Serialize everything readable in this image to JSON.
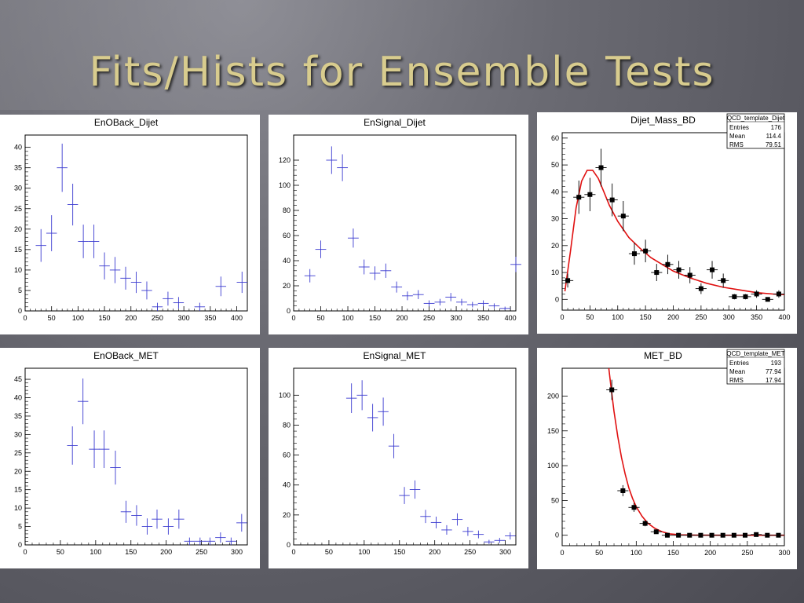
{
  "slide_title": "Fits/Hists for Ensemble Tests",
  "colors": {
    "hist": "#3b3bd0",
    "fit": "#e01010",
    "marker": "#000000",
    "title": "#d8cc8e"
  },
  "chart_data": [
    {
      "type": "scatter",
      "style": "errorbar",
      "title": "EnOBack_Dijet",
      "xlim": [
        0,
        420
      ],
      "ylim": [
        0,
        43
      ],
      "xticks": [
        0,
        50,
        100,
        150,
        200,
        250,
        300,
        350,
        400
      ],
      "yticks": [
        0,
        5,
        10,
        15,
        20,
        25,
        30,
        35,
        40
      ],
      "x": [
        30,
        50,
        70,
        90,
        110,
        130,
        150,
        170,
        190,
        210,
        230,
        250,
        270,
        290,
        330,
        370,
        410
      ],
      "y": [
        16,
        19,
        35,
        26,
        17,
        17,
        11,
        10,
        8,
        7,
        5,
        1,
        3,
        2,
        1,
        6,
        7
      ],
      "yerr": [
        4,
        4.4,
        5.9,
        5.1,
        4.1,
        4.1,
        3.3,
        3.2,
        2.8,
        2.6,
        2.2,
        1,
        1.7,
        1.4,
        1,
        2.4,
        2.6
      ]
    },
    {
      "type": "scatter",
      "style": "errorbar",
      "title": "EnSignal_Dijet",
      "xlim": [
        0,
        410
      ],
      "ylim": [
        0,
        140
      ],
      "xticks": [
        0,
        50,
        100,
        150,
        200,
        250,
        300,
        350,
        400
      ],
      "yticks": [
        0,
        20,
        40,
        60,
        80,
        100,
        120
      ],
      "x": [
        30,
        50,
        70,
        90,
        110,
        130,
        150,
        170,
        190,
        210,
        230,
        250,
        270,
        290,
        310,
        330,
        350,
        370,
        390,
        410
      ],
      "y": [
        28,
        49,
        120,
        114,
        58,
        35,
        30,
        32,
        19,
        12,
        13,
        6,
        7,
        11,
        7,
        5,
        6,
        4,
        2,
        37
      ],
      "yerr": [
        5.3,
        7,
        11,
        10.7,
        7.6,
        5.9,
        5.5,
        5.7,
        4.4,
        3.5,
        3.6,
        2.4,
        2.6,
        3.3,
        2.6,
        2.2,
        2.4,
        2,
        1.4,
        6.1
      ]
    },
    {
      "type": "scatter",
      "style": "markers+fit",
      "title": "Dijet_Mass_BD",
      "xlim": [
        0,
        400
      ],
      "ylim": [
        -4,
        62
      ],
      "xticks": [
        0,
        50,
        100,
        150,
        200,
        250,
        300,
        350,
        400
      ],
      "yticks": [
        0,
        10,
        20,
        30,
        40,
        50,
        60
      ],
      "x": [
        10,
        30,
        50,
        70,
        90,
        110,
        130,
        150,
        170,
        190,
        210,
        230,
        250,
        270,
        290,
        310,
        330,
        350,
        370,
        390
      ],
      "y": [
        7,
        38,
        39,
        49,
        37,
        31,
        17,
        18,
        10,
        13,
        11,
        9,
        4,
        11,
        7,
        1,
        1,
        2,
        0,
        2
      ],
      "yerr": [
        2.6,
        6.2,
        6.2,
        7,
        6.1,
        5.6,
        4.1,
        4.2,
        3.2,
        3.6,
        3.3,
        3,
        2,
        3.3,
        2.6,
        1,
        1,
        1.4,
        0,
        1.4
      ],
      "fit": {
        "x": [
          5,
          15,
          25,
          35,
          45,
          55,
          65,
          75,
          85,
          100,
          120,
          140,
          160,
          180,
          200,
          230,
          260,
          290,
          320,
          350,
          380,
          400
        ],
        "y": [
          3,
          18,
          34,
          44,
          48,
          48,
          45,
          40,
          35,
          29,
          23,
          19,
          15.5,
          13,
          10.5,
          8,
          6,
          4.5,
          3.5,
          2.5,
          2,
          1.8
        ]
      },
      "stats": {
        "name": "QCD_template_Dijet",
        "entries_label": "Entries",
        "entries": "176",
        "mean_label": "Mean",
        "mean": "114.4",
        "rms_label": "RMS",
        "rms": "79.51"
      }
    },
    {
      "type": "scatter",
      "style": "errorbar",
      "title": "EnOBack_MET",
      "xlim": [
        0,
        315
      ],
      "ylim": [
        0,
        48
      ],
      "xticks": [
        0,
        50,
        100,
        150,
        200,
        250,
        300
      ],
      "yticks": [
        0,
        5,
        10,
        15,
        20,
        25,
        30,
        35,
        40,
        45
      ],
      "x": [
        67,
        82,
        98,
        112,
        128,
        143,
        158,
        173,
        187,
        203,
        218,
        233,
        248,
        262,
        277,
        292,
        307
      ],
      "y": [
        27,
        39,
        26,
        26,
        21,
        9,
        8,
        5,
        7,
        5,
        7,
        1,
        1,
        1,
        2,
        1,
        6
      ],
      "yerr": [
        5.2,
        6.2,
        5.1,
        5.1,
        4.6,
        3,
        2.8,
        2.2,
        2.6,
        2.2,
        2.6,
        1,
        1,
        1,
        1.4,
        1,
        2.4
      ]
    },
    {
      "type": "scatter",
      "style": "errorbar",
      "title": "EnSignal_MET",
      "xlim": [
        0,
        315
      ],
      "ylim": [
        0,
        118
      ],
      "xticks": [
        0,
        50,
        100,
        150,
        200,
        250,
        300
      ],
      "yticks": [
        0,
        20,
        40,
        60,
        80,
        100
      ],
      "x": [
        82,
        97,
        112,
        127,
        142,
        157,
        172,
        187,
        202,
        217,
        232,
        247,
        262,
        277,
        292,
        307
      ],
      "y": [
        98,
        100,
        85,
        89,
        66,
        33,
        37,
        19,
        15,
        10,
        17,
        9,
        7,
        2,
        3,
        6
      ],
      "yerr": [
        9.9,
        10,
        9.2,
        9.4,
        8.1,
        5.7,
        6.1,
        4.4,
        3.9,
        3.2,
        4.1,
        3,
        2.6,
        1.4,
        1.7,
        2.4
      ]
    },
    {
      "type": "scatter",
      "style": "markers+fit",
      "title": "MET_BD",
      "xlim": [
        0,
        300
      ],
      "ylim": [
        -15,
        240
      ],
      "xticks": [
        0,
        50,
        100,
        150,
        200,
        250,
        300
      ],
      "yticks": [
        0,
        50,
        100,
        150,
        200
      ],
      "x": [
        67,
        82,
        97,
        112,
        127,
        142,
        157,
        172,
        187,
        202,
        217,
        232,
        247,
        262,
        277,
        292
      ],
      "y": [
        209,
        64,
        40,
        17,
        5,
        0,
        0,
        0,
        0,
        0,
        0,
        0,
        0,
        1,
        0,
        0
      ],
      "yerr": [
        14.5,
        8,
        6.3,
        4.1,
        2.2,
        0,
        0,
        0,
        0,
        0,
        0,
        0,
        0,
        1,
        0,
        0
      ],
      "fit": {
        "x": [
          63,
          66,
          70,
          75,
          80,
          85,
          90,
          95,
          100,
          108,
          116,
          125,
          135,
          145,
          160,
          180,
          220,
          260,
          300
        ],
        "y": [
          240,
          212,
          178,
          142,
          112,
          88,
          68,
          53,
          41,
          27,
          17,
          10,
          5,
          2,
          0.6,
          0.1,
          0,
          0,
          0
        ]
      },
      "stats": {
        "name": "QCD_template_MET",
        "entries_label": "Entries",
        "entries": "193",
        "mean_label": "Mean",
        "mean": "77.94",
        "rms_label": "RMS",
        "rms": "17.94"
      }
    }
  ]
}
